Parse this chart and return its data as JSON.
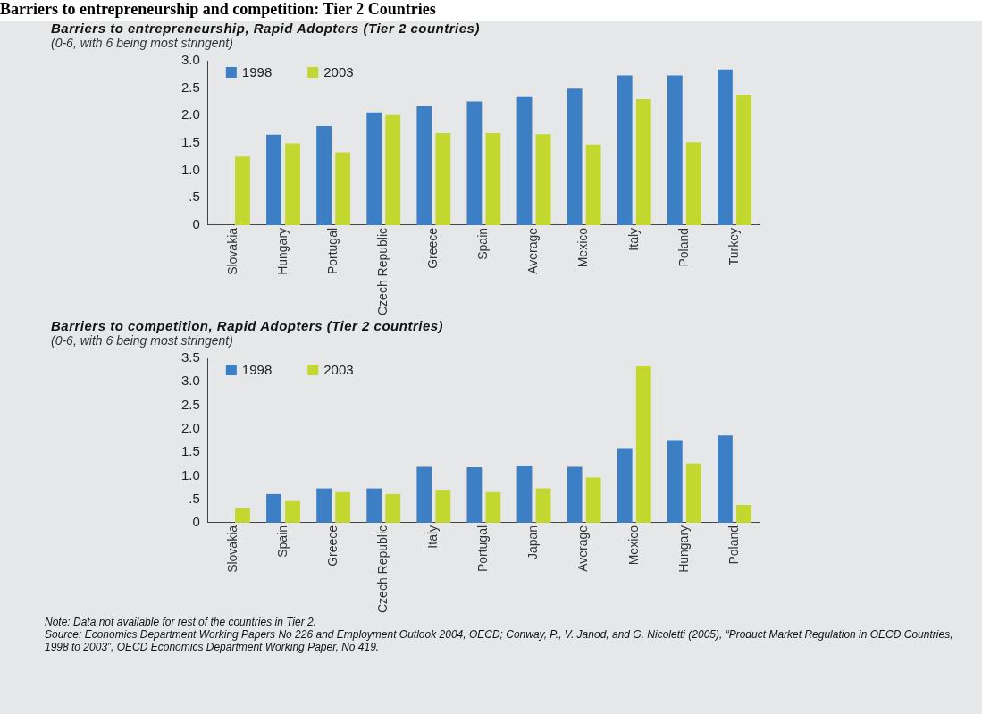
{
  "chart_data": [
    {
      "type": "bar",
      "title": "Barriers to entrepreneurship, Rapid Adopters (Tier 2 countries)",
      "subtitle": "(0-6, with 6 being most stringent)",
      "annotations": [
        "Barriers to entrepreneurship and competition: Tier 2 Countries"
      ],
      "categories": [
        "Slovakia",
        "Hungary",
        "Portugal",
        "Czech Republic",
        "Greece",
        "Spain",
        "Average",
        "Mexico",
        "Italy",
        "Poland",
        "Turkey"
      ],
      "series": [
        {
          "name": "1998",
          "color": "#3d7fc4",
          "values": [
            null,
            1.65,
            1.81,
            2.06,
            2.17,
            2.26,
            2.35,
            2.49,
            2.73,
            2.73,
            2.84
          ]
        },
        {
          "name": "2003",
          "color": "#c3d82e",
          "values": [
            1.25,
            1.49,
            1.33,
            2.01,
            1.68,
            1.68,
            1.66,
            1.47,
            2.3,
            1.51,
            2.38
          ]
        }
      ],
      "ylim": [
        0,
        3
      ],
      "yticks": [
        0,
        {
          "value": 0.5,
          "label": ".5"
        },
        {
          "value": 1,
          "label": "1.0"
        },
        {
          "value": 1.5,
          "label": "1.5"
        },
        {
          "value": 2,
          "label": "2.0"
        },
        {
          "value": 2.5,
          "label": "2.5"
        },
        {
          "value": 3,
          "label": "3.0"
        }
      ],
      "legend": "top left"
    },
    {
      "type": "bar",
      "title": "Barriers to competition, Rapid Adopters (Tier 2 countries)",
      "subtitle": "(0-6, with 6 being most stringent)",
      "annotations": [
        "Note: Data not available for rest of the countries in Tier 2.",
        "Source: Economics Department Working Papers No 226 and Employment Outlook 2004, OECD;  Conway, P., V. Janod, and G. Nicoletti (2005), “Product Market Regulation in OECD Countries, 1998 to 2003”, OECD Economics Department Working Paper, No 419."
      ],
      "categories": [
        "Slovakia",
        "Spain",
        "Greece",
        "Czech Republic",
        "Italy",
        "Portugal",
        "Japan",
        "Average",
        "Mexico",
        "Hungary",
        "Poland"
      ],
      "series": [
        {
          "name": "1998",
          "color": "#3d7fc4",
          "values": [
            null,
            0.61,
            0.73,
            0.73,
            1.19,
            1.18,
            1.21,
            1.19,
            1.59,
            1.76,
            1.86
          ]
        },
        {
          "name": "2003",
          "color": "#c3d82e",
          "values": [
            0.31,
            0.46,
            0.65,
            0.61,
            0.7,
            0.65,
            0.73,
            0.96,
            3.33,
            1.26,
            0.38
          ]
        }
      ],
      "ylim": [
        0,
        3.5
      ],
      "yticks": [
        0,
        {
          "value": 0.5,
          "label": ".5"
        },
        {
          "value": 1,
          "label": "1.0"
        },
        {
          "value": 1.5,
          "label": "1.5"
        },
        {
          "value": 2,
          "label": "2.0"
        },
        {
          "value": 2.5,
          "label": "2.5"
        },
        {
          "value": 3,
          "label": "3.0"
        },
        {
          "value": 3.5,
          "label": "3.5"
        }
      ],
      "legend": "top left"
    }
  ]
}
